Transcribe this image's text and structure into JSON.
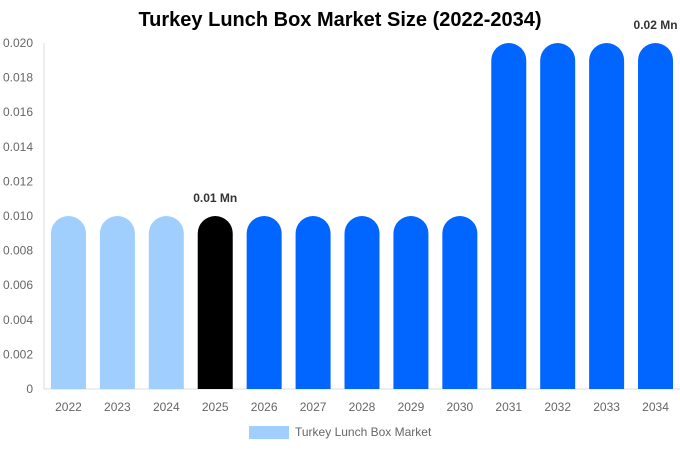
{
  "chart_data": {
    "type": "bar",
    "title": "Turkey Lunch Box Market Size (2022-2034)",
    "xlabel": "",
    "ylabel": "",
    "ylim": [
      0,
      0.02
    ],
    "yticks": [
      "0",
      "0.002",
      "0.004",
      "0.006",
      "0.008",
      "0.010",
      "0.012",
      "0.014",
      "0.016",
      "0.018",
      "0.020"
    ],
    "categories": [
      "2022",
      "2023",
      "2024",
      "2025",
      "2026",
      "2027",
      "2028",
      "2029",
      "2030",
      "2031",
      "2032",
      "2033",
      "2034"
    ],
    "series": [
      {
        "name": "Turkey Lunch Box Market",
        "values": [
          0.01,
          0.01,
          0.01,
          0.01,
          0.01,
          0.01,
          0.01,
          0.01,
          0.01,
          0.02,
          0.02,
          0.02,
          0.02
        ]
      }
    ],
    "bar_colors": [
      "#a0cffd",
      "#a0cffd",
      "#a0cffd",
      "#000000",
      "#0066ff",
      "#0066ff",
      "#0066ff",
      "#0066ff",
      "#0066ff",
      "#0066ff",
      "#0066ff",
      "#0066ff",
      "#0066ff"
    ],
    "annotations": [
      {
        "index": 3,
        "text": "0.01 Mn"
      },
      {
        "index": 12,
        "text": "0.02 Mn"
      }
    ],
    "grid": false,
    "legend_position": "bottom"
  },
  "legend": {
    "label": "Turkey Lunch Box Market",
    "color": "#a0cffd"
  }
}
